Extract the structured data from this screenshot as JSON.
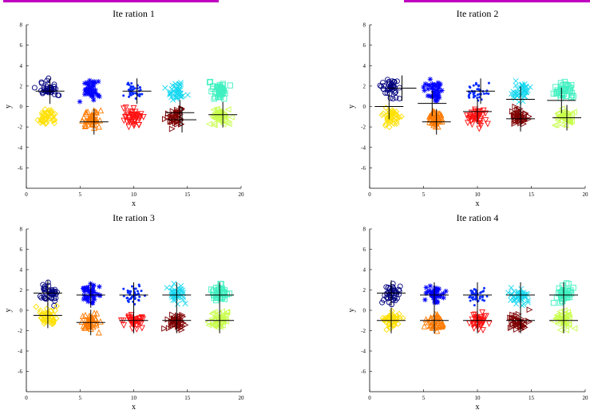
{
  "colors": {
    "navy": "#00007f",
    "blue": "#0000ff",
    "royal": "#0a2cff",
    "cyan": "#19d8f0",
    "aqua": "#40f0c0",
    "yellow": "#ffe000",
    "orange": "#ff7a00",
    "red": "#ff1010",
    "maroon": "#7f0000",
    "lime": "#c8ff4a"
  },
  "chart_data": [
    {
      "type": "scatter",
      "title": "Ite ration 1",
      "xlabel": "x",
      "ylabel": "y",
      "xlim": [
        0,
        20
      ],
      "ylim": [
        -8,
        8
      ],
      "xticks": [
        "0",
        "5",
        "10",
        "15",
        "20"
      ],
      "yticks": [
        "-6",
        "-4",
        "-2",
        "0",
        "2",
        "4",
        "6",
        "8"
      ],
      "clusters": [
        {
          "marker": "circle",
          "color": "navy",
          "cx": 2,
          "cy": 1.7
        },
        {
          "marker": "star",
          "color": "blue",
          "cx": 6,
          "cy": 1.6
        },
        {
          "marker": "dot",
          "color": "royal",
          "cx": 10,
          "cy": 1.5
        },
        {
          "marker": "x",
          "color": "cyan",
          "cx": 14,
          "cy": 1.5
        },
        {
          "marker": "square",
          "color": "aqua",
          "cx": 18,
          "cy": 1.6
        },
        {
          "marker": "diamond",
          "color": "yellow",
          "cx": 2,
          "cy": -1.0
        },
        {
          "marker": "triangle-up",
          "color": "orange",
          "cx": 6,
          "cy": -1.2
        },
        {
          "marker": "triangle-down",
          "color": "red",
          "cx": 10,
          "cy": -1.1
        },
        {
          "marker": "triangle-right",
          "color": "maroon",
          "cx": 14,
          "cy": -1.1
        },
        {
          "marker": "triangle-left",
          "color": "lime",
          "cx": 18,
          "cy": -1.0
        }
      ],
      "centroids": [
        {
          "x": 2.2,
          "y": 1.5
        },
        {
          "x": 6.3,
          "y": -1.5
        },
        {
          "x": 10.3,
          "y": 1.5
        },
        {
          "x": 14.3,
          "y": -0.6
        },
        {
          "x": 14.5,
          "y": -1.3
        },
        {
          "x": 18.3,
          "y": -0.8
        }
      ]
    },
    {
      "type": "scatter",
      "title": "Ite ration 2",
      "xlabel": "x",
      "ylabel": "y",
      "xlim": [
        0,
        20
      ],
      "ylim": [
        -8,
        8
      ],
      "xticks": [
        "0",
        "5",
        "10",
        "15",
        "20"
      ],
      "yticks": [
        "-6",
        "-4",
        "-2",
        "0",
        "2",
        "4",
        "6",
        "8"
      ],
      "clusters": [
        {
          "marker": "circle",
          "color": "navy",
          "cx": 2,
          "cy": 1.7
        },
        {
          "marker": "star",
          "color": "blue",
          "cx": 6,
          "cy": 1.6
        },
        {
          "marker": "dot",
          "color": "royal",
          "cx": 10,
          "cy": 1.5
        },
        {
          "marker": "x",
          "color": "cyan",
          "cx": 14,
          "cy": 1.5
        },
        {
          "marker": "square",
          "color": "aqua",
          "cx": 18,
          "cy": 1.6
        },
        {
          "marker": "diamond",
          "color": "yellow",
          "cx": 2,
          "cy": -1.0
        },
        {
          "marker": "triangle-up",
          "color": "orange",
          "cx": 6,
          "cy": -1.2
        },
        {
          "marker": "triangle-down",
          "color": "red",
          "cx": 10,
          "cy": -1.1
        },
        {
          "marker": "triangle-right",
          "color": "maroon",
          "cx": 14,
          "cy": -1.1
        },
        {
          "marker": "triangle-left",
          "color": "lime",
          "cx": 18,
          "cy": -1.0
        }
      ],
      "centroids": [
        {
          "x": 3.0,
          "y": 1.8
        },
        {
          "x": 1.8,
          "y": 0.0
        },
        {
          "x": 5.8,
          "y": 0.3
        },
        {
          "x": 6.2,
          "y": -1.5
        },
        {
          "x": 10.3,
          "y": 1.5
        },
        {
          "x": 10.0,
          "y": -0.5
        },
        {
          "x": 14.0,
          "y": 0.7
        },
        {
          "x": 14.0,
          "y": -1.2
        },
        {
          "x": 17.8,
          "y": 0.6
        },
        {
          "x": 18.3,
          "y": -1.1
        }
      ]
    },
    {
      "type": "scatter",
      "title": "Ite ration 3",
      "xlabel": "x",
      "ylabel": "y",
      "xlim": [
        0,
        20
      ],
      "ylim": [
        -8,
        8
      ],
      "xticks": [
        "0",
        "5",
        "10",
        "15",
        "20"
      ],
      "yticks": [
        "-6",
        "-4",
        "-2",
        "0",
        "2",
        "4",
        "6",
        "8"
      ],
      "clusters": [
        {
          "marker": "circle",
          "color": "navy",
          "cx": 2,
          "cy": 1.7
        },
        {
          "marker": "star",
          "color": "blue",
          "cx": 6,
          "cy": 1.6
        },
        {
          "marker": "dot",
          "color": "royal",
          "cx": 10,
          "cy": 1.5
        },
        {
          "marker": "x",
          "color": "cyan",
          "cx": 14,
          "cy": 1.5
        },
        {
          "marker": "square",
          "color": "aqua",
          "cx": 18,
          "cy": 1.6
        },
        {
          "marker": "diamond",
          "color": "yellow",
          "cx": 2,
          "cy": -0.6
        },
        {
          "marker": "triangle-up",
          "color": "orange",
          "cx": 6,
          "cy": -1.2
        },
        {
          "marker": "triangle-down",
          "color": "red",
          "cx": 10,
          "cy": -1.1
        },
        {
          "marker": "triangle-right",
          "color": "maroon",
          "cx": 14,
          "cy": -1.1
        },
        {
          "marker": "triangle-left",
          "color": "lime",
          "cx": 18,
          "cy": -1.0
        }
      ],
      "centroids": [
        {
          "x": 2.0,
          "y": 1.7
        },
        {
          "x": 2.0,
          "y": -0.5
        },
        {
          "x": 6.0,
          "y": 1.5
        },
        {
          "x": 6.0,
          "y": -1.2
        },
        {
          "x": 10.0,
          "y": 1.5
        },
        {
          "x": 10.0,
          "y": -1.0
        },
        {
          "x": 14.0,
          "y": 1.5
        },
        {
          "x": 14.0,
          "y": -1.0
        },
        {
          "x": 18.0,
          "y": 1.5
        },
        {
          "x": 18.0,
          "y": -1.0
        }
      ]
    },
    {
      "type": "scatter",
      "title": "Ite ration 4",
      "xlabel": "x",
      "ylabel": "y",
      "xlim": [
        0,
        20
      ],
      "ylim": [
        -8,
        8
      ],
      "xticks": [
        "0",
        "5",
        "10",
        "15",
        "20"
      ],
      "yticks": [
        "-6",
        "-4",
        "-2",
        "0",
        "2",
        "4",
        "6",
        "8"
      ],
      "clusters": [
        {
          "marker": "circle",
          "color": "navy",
          "cx": 2,
          "cy": 1.7
        },
        {
          "marker": "star",
          "color": "blue",
          "cx": 6,
          "cy": 1.6
        },
        {
          "marker": "dot",
          "color": "royal",
          "cx": 10,
          "cy": 1.5
        },
        {
          "marker": "x",
          "color": "cyan",
          "cx": 14,
          "cy": 1.5
        },
        {
          "marker": "square",
          "color": "aqua",
          "cx": 18,
          "cy": 1.6
        },
        {
          "marker": "diamond",
          "color": "yellow",
          "cx": 2,
          "cy": -1.0
        },
        {
          "marker": "triangle-up",
          "color": "orange",
          "cx": 6,
          "cy": -1.2
        },
        {
          "marker": "triangle-down",
          "color": "red",
          "cx": 10,
          "cy": -1.1
        },
        {
          "marker": "triangle-right",
          "color": "maroon",
          "cx": 14,
          "cy": -1.1
        },
        {
          "marker": "triangle-left",
          "color": "lime",
          "cx": 18,
          "cy": -1.0
        }
      ],
      "centroids": [
        {
          "x": 2.0,
          "y": 1.7
        },
        {
          "x": 2.0,
          "y": -1.0
        },
        {
          "x": 6.0,
          "y": 1.5
        },
        {
          "x": 6.0,
          "y": -1.0
        },
        {
          "x": 10.0,
          "y": 1.5
        },
        {
          "x": 10.0,
          "y": -1.0
        },
        {
          "x": 14.0,
          "y": 1.5
        },
        {
          "x": 14.0,
          "y": -1.0
        },
        {
          "x": 18.0,
          "y": 1.5
        },
        {
          "x": 18.0,
          "y": -1.0
        }
      ]
    }
  ]
}
